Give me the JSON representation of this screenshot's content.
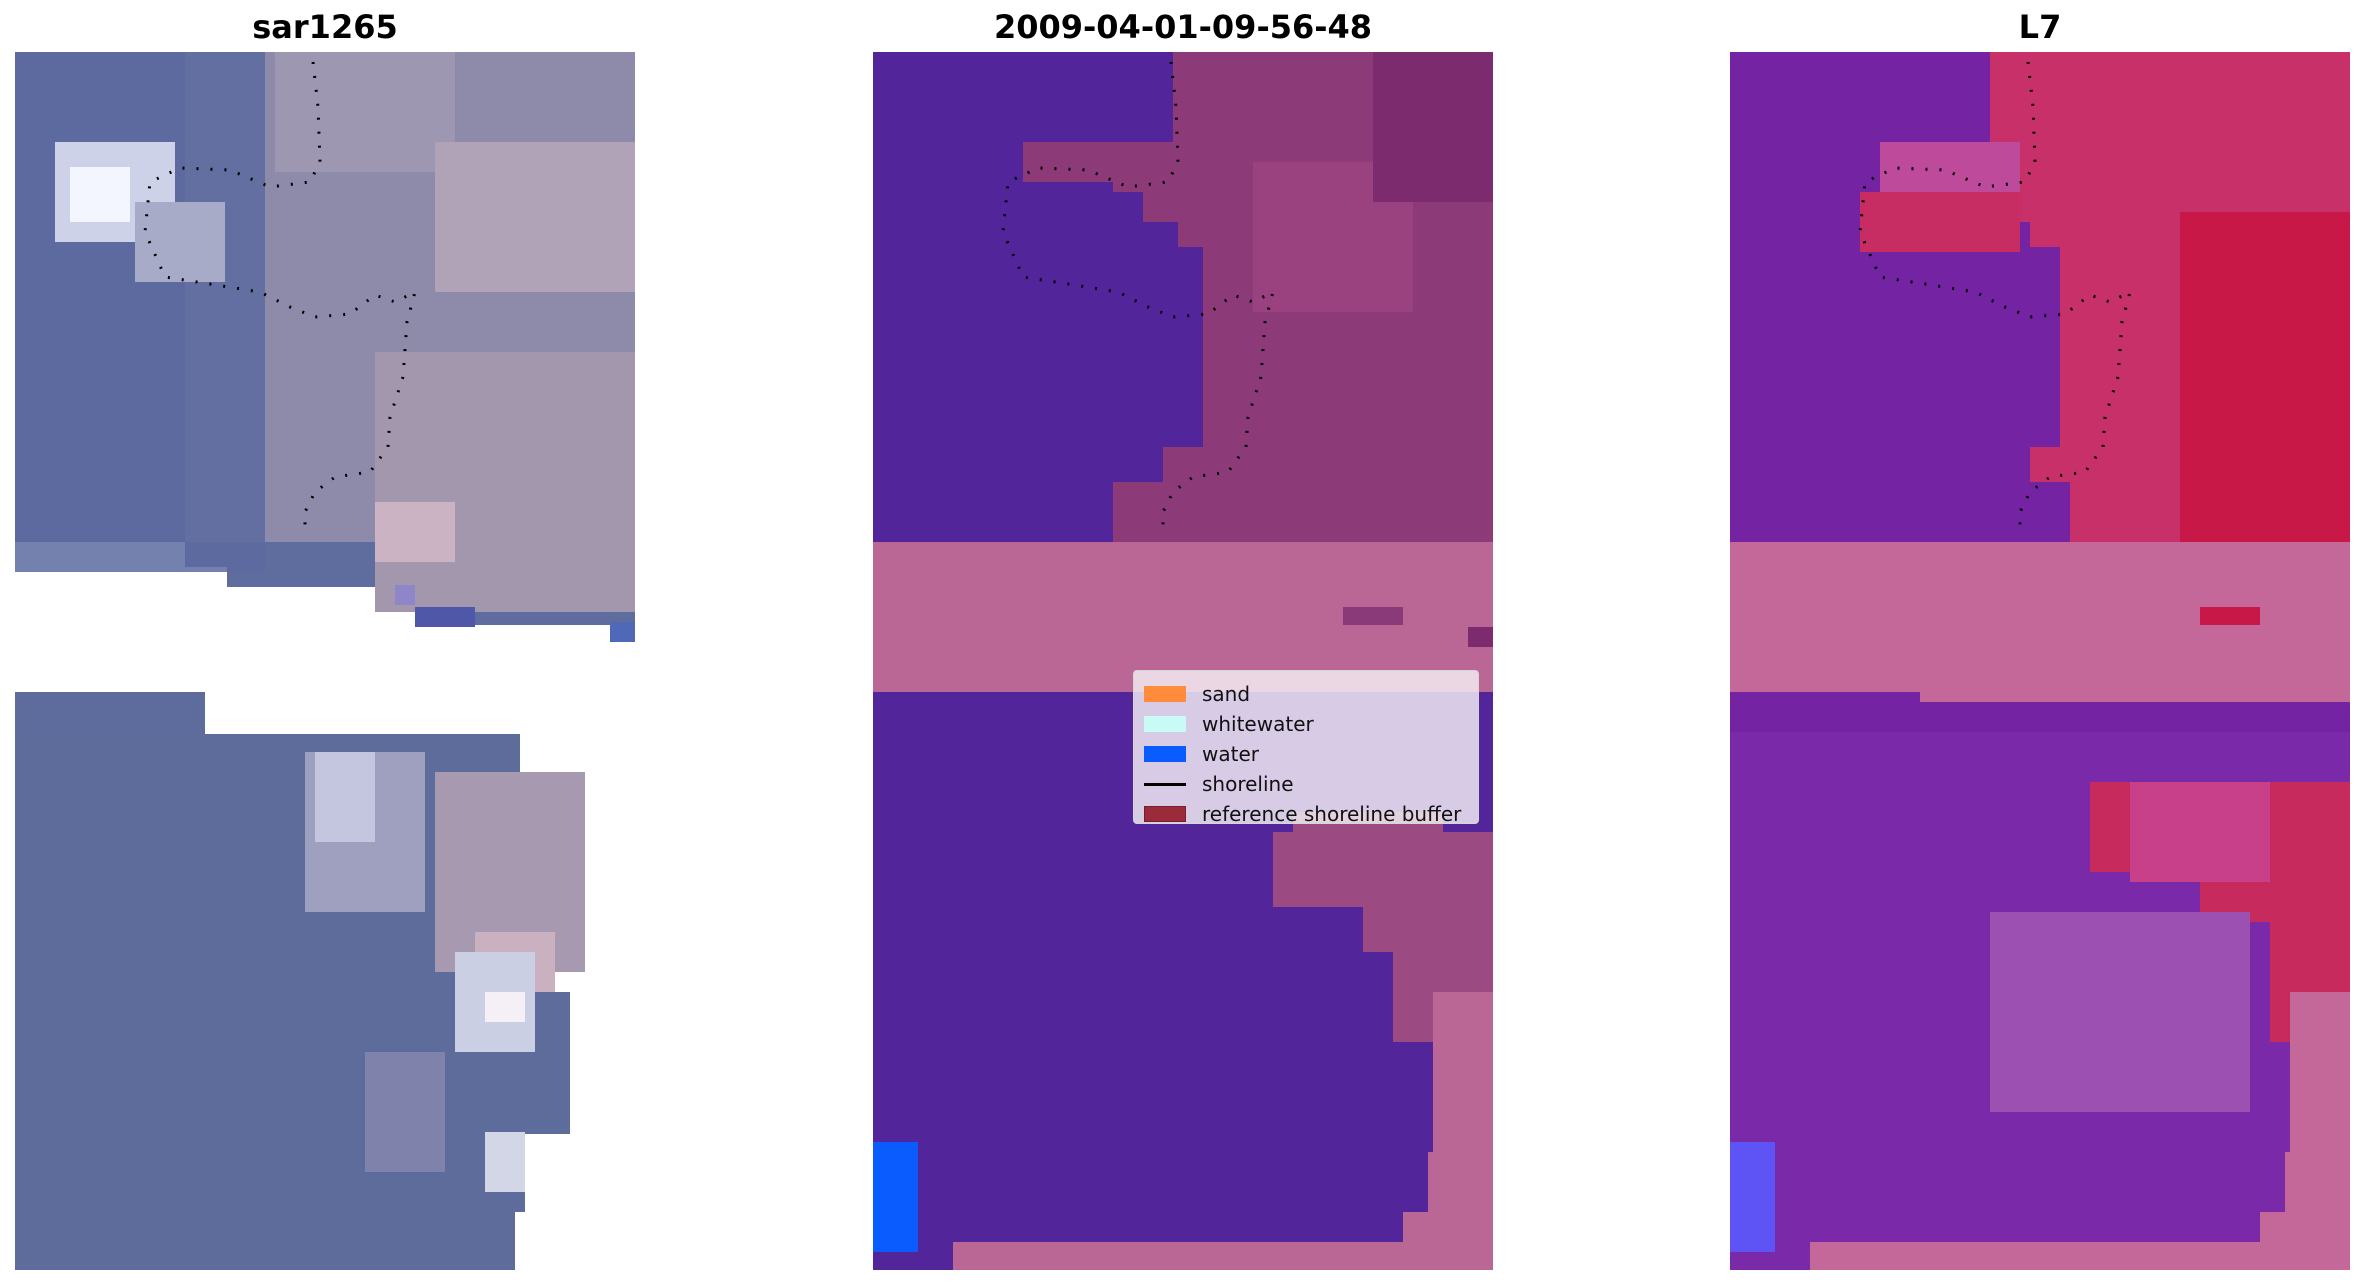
{
  "panels": {
    "left_title": "sar1265",
    "middle_title": "2009-04-01-09-56-48",
    "right_title": "L7"
  },
  "legend": {
    "items": [
      {
        "label": "sand",
        "color": "#ff8c3a"
      },
      {
        "label": "whitewater",
        "color": "#c8fbf5"
      },
      {
        "label": "water",
        "color": "#0a5cff"
      },
      {
        "label": "shoreline",
        "color": "#000000"
      },
      {
        "label": "reference shoreline buffer",
        "color": "#9b2b3a"
      }
    ]
  },
  "colors": {
    "rgb_water": "#5b6a9e",
    "rgb_land": "#9a8fae",
    "classified_water": "#53259a",
    "classified_land": "#8c3a78",
    "buffer": "#ba6796",
    "index_water": "#7424a2",
    "index_land": "#c8204e"
  }
}
